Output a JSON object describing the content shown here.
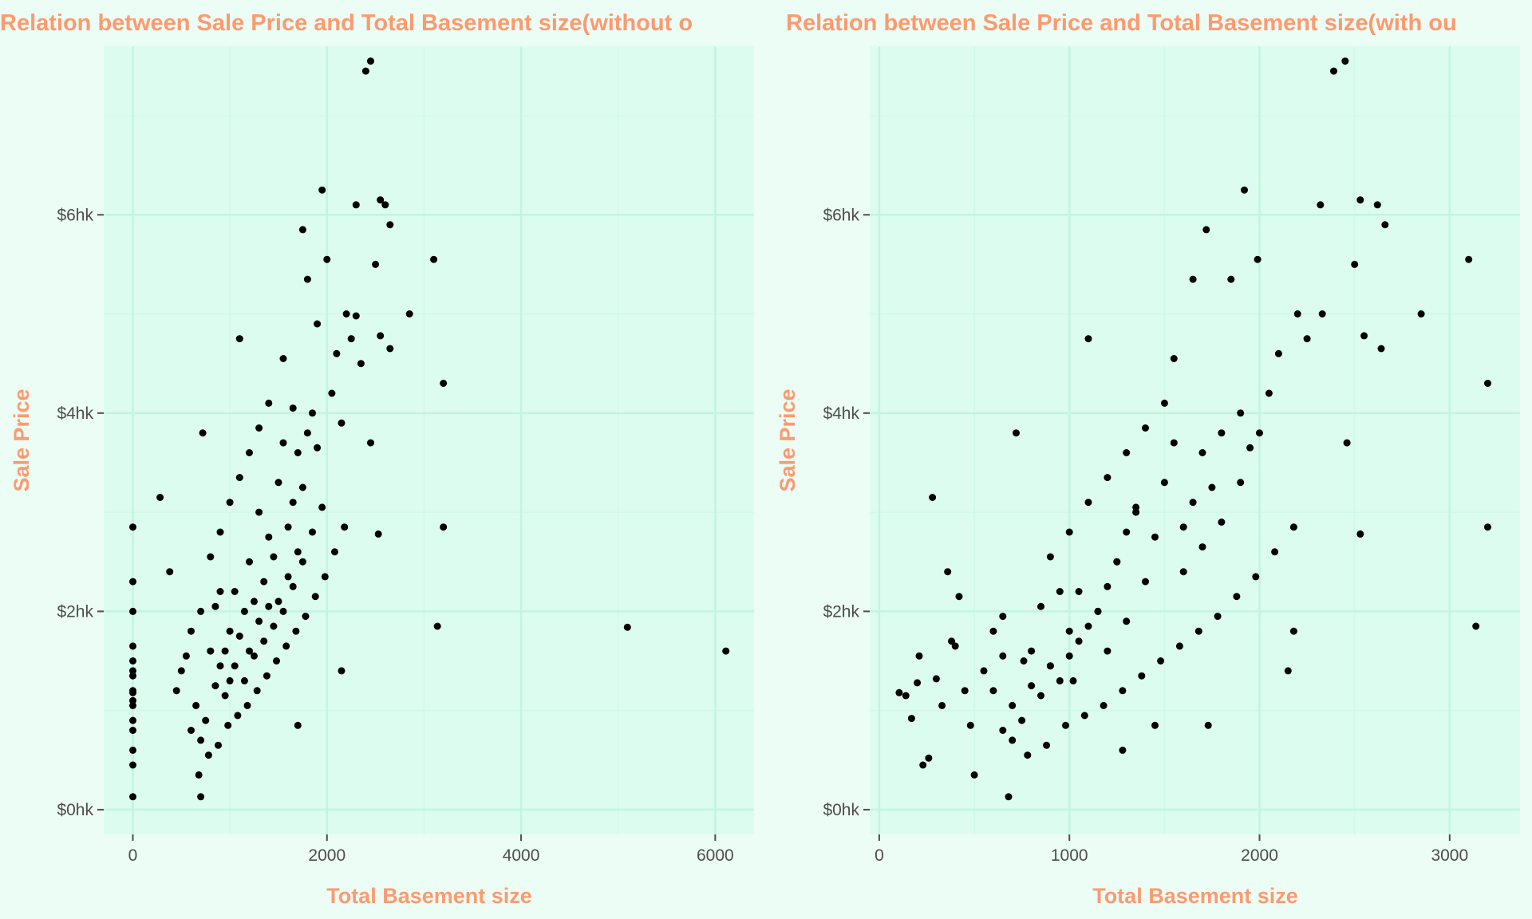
{
  "colors": {
    "page_background": "#ecfdf5",
    "panel_background": "#dcfcef",
    "gridline_major": "#c2f5df",
    "gridline_minor": "#d2f9e8",
    "title_color": "#fc9a70",
    "point_color": "#000000",
    "tick_color": "#4d4d4d"
  },
  "chart_data": [
    {
      "type": "scatter",
      "title": "Relation between Sale Price and Total Basement size(without o",
      "xlabel": "Total Basement size",
      "ylabel": "Sale Price",
      "xlim": [
        -300,
        6400
      ],
      "ylim": [
        -2500,
        77000
      ],
      "x_ticks": [
        0,
        2000,
        4000,
        6000
      ],
      "x_tick_labels": [
        "0",
        "2000",
        "4000",
        "6000"
      ],
      "y_ticks": [
        0,
        20000,
        40000,
        60000
      ],
      "y_tick_labels": [
        "$0hk",
        "$2hk",
        "$4hk",
        "$6hk"
      ],
      "grid": true,
      "legend": "none",
      "points": [
        [
          0,
          1300
        ],
        [
          0,
          12000
        ],
        [
          0,
          16500
        ],
        [
          0,
          23000
        ],
        [
          0,
          28500
        ],
        [
          0,
          10500
        ],
        [
          0,
          11000
        ],
        [
          0,
          11800
        ],
        [
          0,
          13500
        ],
        [
          0,
          14000
        ],
        [
          0,
          15000
        ],
        [
          0,
          9000
        ],
        [
          0,
          8000
        ],
        [
          0,
          6000
        ],
        [
          0,
          4500
        ],
        [
          0,
          20000
        ],
        [
          280,
          31500
        ],
        [
          380,
          24000
        ],
        [
          500,
          14000
        ],
        [
          600,
          18000
        ],
        [
          700,
          20000
        ],
        [
          720,
          38000
        ],
        [
          700,
          1300
        ],
        [
          800,
          16000
        ],
        [
          850,
          20500
        ],
        [
          900,
          14500
        ],
        [
          900,
          22000
        ],
        [
          950,
          16000
        ],
        [
          1000,
          18000
        ],
        [
          1000,
          13000
        ],
        [
          1050,
          22000
        ],
        [
          1100,
          17500
        ],
        [
          1100,
          47500
        ],
        [
          1150,
          20000
        ],
        [
          1200,
          16000
        ],
        [
          1200,
          25000
        ],
        [
          1250,
          21000
        ],
        [
          1300,
          19000
        ],
        [
          1300,
          30000
        ],
        [
          1350,
          23000
        ],
        [
          1400,
          27500
        ],
        [
          1400,
          20500
        ],
        [
          1450,
          25500
        ],
        [
          1500,
          33000
        ],
        [
          1500,
          21000
        ],
        [
          1550,
          37000
        ],
        [
          1550,
          45500
        ],
        [
          1600,
          28500
        ],
        [
          1600,
          23500
        ],
        [
          1650,
          31000
        ],
        [
          1650,
          40500
        ],
        [
          1700,
          36000
        ],
        [
          1700,
          26000
        ],
        [
          1750,
          32500
        ],
        [
          1750,
          58500
        ],
        [
          1800,
          38000
        ],
        [
          1800,
          53500
        ],
        [
          1850,
          40000
        ],
        [
          1900,
          36500
        ],
        [
          1900,
          49000
        ],
        [
          1950,
          62500
        ],
        [
          2000,
          55500
        ],
        [
          2050,
          42000
        ],
        [
          2100,
          46000
        ],
        [
          2150,
          39000
        ],
        [
          2200,
          50000
        ],
        [
          2250,
          47500
        ],
        [
          2300,
          49800
        ],
        [
          2300,
          61000
        ],
        [
          2350,
          45000
        ],
        [
          2400,
          74500
        ],
        [
          2450,
          75500
        ],
        [
          2450,
          37000
        ],
        [
          2500,
          55000
        ],
        [
          2550,
          61500
        ],
        [
          2550,
          47800
        ],
        [
          2600,
          61000
        ],
        [
          2650,
          59000
        ],
        [
          2650,
          46500
        ],
        [
          2850,
          50000
        ],
        [
          3100,
          55500
        ],
        [
          3200,
          43000
        ],
        [
          3200,
          28500
        ],
        [
          3138,
          18500
        ],
        [
          2530,
          27800
        ],
        [
          1700,
          8500
        ],
        [
          2150,
          14000
        ],
        [
          680,
          3500
        ],
        [
          5095,
          18400
        ],
        [
          6110,
          16000
        ],
        [
          450,
          12000
        ],
        [
          550,
          15500
        ],
        [
          650,
          10500
        ],
        [
          750,
          9000
        ],
        [
          850,
          12500
        ],
        [
          950,
          11500
        ],
        [
          1050,
          14500
        ],
        [
          1150,
          13000
        ],
        [
          1250,
          15500
        ],
        [
          1350,
          17000
        ],
        [
          1450,
          18500
        ],
        [
          1550,
          20000
        ],
        [
          1650,
          22500
        ],
        [
          1750,
          25000
        ],
        [
          1850,
          28000
        ],
        [
          1950,
          30500
        ],
        [
          800,
          25500
        ],
        [
          900,
          28000
        ],
        [
          1000,
          31000
        ],
        [
          1100,
          33500
        ],
        [
          1200,
          36000
        ],
        [
          1300,
          38500
        ],
        [
          1400,
          41000
        ],
        [
          600,
          8000
        ],
        [
          700,
          7000
        ],
        [
          780,
          5500
        ],
        [
          880,
          6500
        ],
        [
          980,
          8500
        ],
        [
          1080,
          9500
        ],
        [
          1180,
          10500
        ],
        [
          1280,
          12000
        ],
        [
          1380,
          13500
        ],
        [
          1480,
          15000
        ],
        [
          1580,
          16500
        ],
        [
          1680,
          18000
        ],
        [
          1780,
          19500
        ],
        [
          1880,
          21500
        ],
        [
          1980,
          23500
        ],
        [
          2080,
          26000
        ],
        [
          2180,
          28500
        ]
      ]
    },
    {
      "type": "scatter",
      "title": "Relation between Sale Price and Total Basement size(with ou",
      "xlabel": "Total Basement size",
      "ylabel": "Sale Price",
      "xlim": [
        -50,
        3370
      ],
      "ylim": [
        -2500,
        77000
      ],
      "x_ticks": [
        0,
        1000,
        2000,
        3000
      ],
      "x_tick_labels": [
        "0",
        "1000",
        "2000",
        "3000"
      ],
      "y_ticks": [
        0,
        20000,
        40000,
        60000
      ],
      "y_tick_labels": [
        "$0hk",
        "$2hk",
        "$4hk",
        "$6hk"
      ],
      "grid": true,
      "legend": "none",
      "points": [
        [
          105,
          11800
        ],
        [
          140,
          11500
        ],
        [
          170,
          9200
        ],
        [
          200,
          12800
        ],
        [
          210,
          15500
        ],
        [
          230,
          4500
        ],
        [
          260,
          5200
        ],
        [
          280,
          31500
        ],
        [
          300,
          13200
        ],
        [
          330,
          10500
        ],
        [
          360,
          24000
        ],
        [
          380,
          17000
        ],
        [
          400,
          16500
        ],
        [
          420,
          21500
        ],
        [
          450,
          12000
        ],
        [
          480,
          8500
        ],
        [
          500,
          3500
        ],
        [
          550,
          14000
        ],
        [
          600,
          18000
        ],
        [
          650,
          19500
        ],
        [
          680,
          1300
        ],
        [
          720,
          38000
        ],
        [
          760,
          15000
        ],
        [
          800,
          16000
        ],
        [
          850,
          20500
        ],
        [
          900,
          14500
        ],
        [
          950,
          22000
        ],
        [
          1000,
          18000
        ],
        [
          1020,
          13000
        ],
        [
          1050,
          22000
        ],
        [
          1100,
          47500
        ],
        [
          1150,
          20000
        ],
        [
          1200,
          16000
        ],
        [
          1250,
          25000
        ],
        [
          1280,
          6000
        ],
        [
          1300,
          19000
        ],
        [
          1350,
          30000
        ],
        [
          1400,
          23000
        ],
        [
          1450,
          27500
        ],
        [
          1450,
          8500
        ],
        [
          1500,
          33000
        ],
        [
          1550,
          37000
        ],
        [
          1550,
          45500
        ],
        [
          1600,
          28500
        ],
        [
          1650,
          31000
        ],
        [
          1650,
          53500
        ],
        [
          1700,
          36000
        ],
        [
          1720,
          58500
        ],
        [
          1730,
          8500
        ],
        [
          1750,
          32500
        ],
        [
          1800,
          38000
        ],
        [
          1850,
          53500
        ],
        [
          1900,
          40000
        ],
        [
          1920,
          62500
        ],
        [
          1950,
          36500
        ],
        [
          1990,
          55500
        ],
        [
          2050,
          42000
        ],
        [
          2100,
          46000
        ],
        [
          2150,
          14000
        ],
        [
          2180,
          18000
        ],
        [
          2200,
          50000
        ],
        [
          2250,
          47500
        ],
        [
          2320,
          61000
        ],
        [
          2330,
          50000
        ],
        [
          2390,
          74500
        ],
        [
          2450,
          75500
        ],
        [
          2460,
          37000
        ],
        [
          2500,
          55000
        ],
        [
          2530,
          61500
        ],
        [
          2530,
          27800
        ],
        [
          2550,
          47800
        ],
        [
          2620,
          61000
        ],
        [
          2640,
          46500
        ],
        [
          2660,
          59000
        ],
        [
          2850,
          50000
        ],
        [
          3100,
          55500
        ],
        [
          3138,
          18500
        ],
        [
          3200,
          43000
        ],
        [
          3200,
          28500
        ],
        [
          600,
          12000
        ],
        [
          650,
          15500
        ],
        [
          700,
          10500
        ],
        [
          750,
          9000
        ],
        [
          800,
          12500
        ],
        [
          850,
          11500
        ],
        [
          900,
          14500
        ],
        [
          950,
          13000
        ],
        [
          1000,
          15500
        ],
        [
          1050,
          17000
        ],
        [
          1100,
          18500
        ],
        [
          1150,
          20000
        ],
        [
          1200,
          22500
        ],
        [
          1250,
          25000
        ],
        [
          1300,
          28000
        ],
        [
          1350,
          30500
        ],
        [
          900,
          25500
        ],
        [
          1000,
          28000
        ],
        [
          1100,
          31000
        ],
        [
          1200,
          33500
        ],
        [
          1300,
          36000
        ],
        [
          1400,
          38500
        ],
        [
          1500,
          41000
        ],
        [
          650,
          8000
        ],
        [
          700,
          7000
        ],
        [
          780,
          5500
        ],
        [
          880,
          6500
        ],
        [
          980,
          8500
        ],
        [
          1080,
          9500
        ],
        [
          1180,
          10500
        ],
        [
          1280,
          12000
        ],
        [
          1380,
          13500
        ],
        [
          1480,
          15000
        ],
        [
          1580,
          16500
        ],
        [
          1680,
          18000
        ],
        [
          1780,
          19500
        ],
        [
          1880,
          21500
        ],
        [
          1980,
          23500
        ],
        [
          2080,
          26000
        ],
        [
          2180,
          28500
        ],
        [
          1600,
          24000
        ],
        [
          1700,
          26500
        ],
        [
          1800,
          29000
        ],
        [
          1900,
          33000
        ],
        [
          2000,
          38000
        ]
      ]
    }
  ]
}
